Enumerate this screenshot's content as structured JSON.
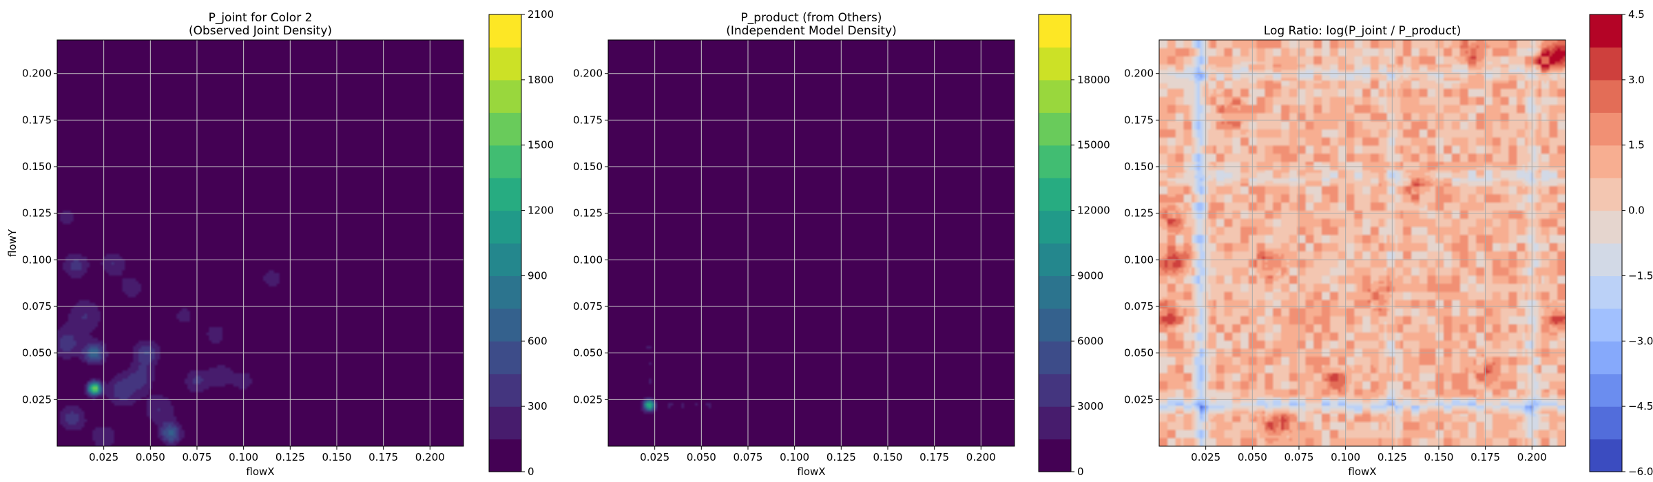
{
  "chart_data": [
    {
      "type": "heatmap",
      "title_lines": [
        "P_joint for Color 2",
        "(Observed Joint Density)"
      ],
      "xlabel": "flowX",
      "ylabel": "flowY",
      "xlim": [
        0.0,
        0.218
      ],
      "ylim": [
        0.0,
        0.218
      ],
      "xticks": [
        0.025,
        0.05,
        0.075,
        0.1,
        0.125,
        0.15,
        0.175,
        0.2
      ],
      "yticks": [
        0.025,
        0.05,
        0.075,
        0.1,
        0.125,
        0.15,
        0.175,
        0.2
      ],
      "xtick_labels": [
        "0.025",
        "0.050",
        "0.075",
        "0.100",
        "0.125",
        "0.150",
        "0.175",
        "0.200"
      ],
      "ytick_labels": [
        "0.025",
        "0.050",
        "0.075",
        "0.100",
        "0.125",
        "0.150",
        "0.175",
        "0.200"
      ],
      "grid": true,
      "colormap": "viridis",
      "colorbar": {
        "min": 0,
        "max": 2100,
        "ticks": [
          0,
          300,
          600,
          900,
          1200,
          1500,
          1800,
          2100
        ],
        "tick_labels": [
          "0",
          "300",
          "600",
          "900",
          "1200",
          "1500",
          "1800",
          "2100"
        ]
      },
      "background_value": 0,
      "hotspots": [
        {
          "x": 0.02,
          "y": 0.031,
          "value": 1650,
          "spread": 0.0025
        },
        {
          "x": 0.02,
          "y": 0.05,
          "value": 700,
          "spread": 0.004
        },
        {
          "x": 0.061,
          "y": 0.007,
          "value": 650,
          "spread": 0.004
        },
        {
          "x": 0.048,
          "y": 0.05,
          "value": 450,
          "spread": 0.005
        },
        {
          "x": 0.035,
          "y": 0.03,
          "value": 420,
          "spread": 0.006
        },
        {
          "x": 0.008,
          "y": 0.015,
          "value": 380,
          "spread": 0.005
        },
        {
          "x": 0.01,
          "y": 0.097,
          "value": 360,
          "spread": 0.005
        },
        {
          "x": 0.005,
          "y": 0.055,
          "value": 360,
          "spread": 0.006
        },
        {
          "x": 0.03,
          "y": 0.098,
          "value": 300,
          "spread": 0.005
        },
        {
          "x": 0.045,
          "y": 0.037,
          "value": 330,
          "spread": 0.005
        },
        {
          "x": 0.075,
          "y": 0.035,
          "value": 320,
          "spread": 0.005
        },
        {
          "x": 0.088,
          "y": 0.038,
          "value": 260,
          "spread": 0.005
        },
        {
          "x": 0.1,
          "y": 0.035,
          "value": 260,
          "spread": 0.004
        },
        {
          "x": 0.055,
          "y": 0.02,
          "value": 300,
          "spread": 0.006
        },
        {
          "x": 0.015,
          "y": 0.07,
          "value": 300,
          "spread": 0.007
        },
        {
          "x": 0.04,
          "y": 0.085,
          "value": 250,
          "spread": 0.005
        },
        {
          "x": 0.115,
          "y": 0.09,
          "value": 260,
          "spread": 0.004
        },
        {
          "x": 0.005,
          "y": 0.123,
          "value": 220,
          "spread": 0.004
        },
        {
          "x": 0.085,
          "y": 0.06,
          "value": 220,
          "spread": 0.005
        },
        {
          "x": 0.068,
          "y": 0.07,
          "value": 200,
          "spread": 0.005
        },
        {
          "x": 0.025,
          "y": 0.005,
          "value": 240,
          "spread": 0.006
        }
      ]
    },
    {
      "type": "heatmap",
      "title_lines": [
        "P_product (from Others)",
        "(Independent Model Density)"
      ],
      "xlabel": "flowX",
      "ylabel": "",
      "xlim": [
        0.0,
        0.218
      ],
      "ylim": [
        0.0,
        0.218
      ],
      "xticks": [
        0.025,
        0.05,
        0.075,
        0.1,
        0.125,
        0.15,
        0.175,
        0.2
      ],
      "yticks": [
        0.025,
        0.05,
        0.075,
        0.1,
        0.125,
        0.15,
        0.175,
        0.2
      ],
      "xtick_labels": [
        "0.025",
        "0.050",
        "0.075",
        "0.100",
        "0.125",
        "0.150",
        "0.175",
        "0.200"
      ],
      "ytick_labels": [
        "0.025",
        "0.050",
        "0.075",
        "0.100",
        "0.125",
        "0.150",
        "0.175",
        "0.200"
      ],
      "grid": true,
      "colormap": "viridis",
      "colorbar": {
        "min": 0,
        "max": 21000,
        "ticks": [
          0,
          3000,
          6000,
          9000,
          12000,
          15000,
          18000
        ],
        "tick_labels": [
          "0",
          "3000",
          "6000",
          "9000",
          "12000",
          "15000",
          "18000"
        ]
      },
      "background_value": 0,
      "hotspots": [
        {
          "x": 0.022,
          "y": 0.022,
          "value": 14000,
          "spread": 0.0022
        },
        {
          "x": 0.022,
          "y": 0.053,
          "value": 2200,
          "spread": 0.0015
        },
        {
          "x": 0.022,
          "y": 0.045,
          "value": 1800,
          "spread": 0.0015
        },
        {
          "x": 0.022,
          "y": 0.035,
          "value": 1900,
          "spread": 0.0015
        },
        {
          "x": 0.022,
          "y": 0.07,
          "value": 1200,
          "spread": 0.0015
        },
        {
          "x": 0.022,
          "y": 0.088,
          "value": 900,
          "spread": 0.0015
        },
        {
          "x": 0.022,
          "y": 0.102,
          "value": 700,
          "spread": 0.0015
        },
        {
          "x": 0.003,
          "y": 0.022,
          "value": 1600,
          "spread": 0.0015
        },
        {
          "x": 0.011,
          "y": 0.022,
          "value": 1400,
          "spread": 0.0015
        },
        {
          "x": 0.033,
          "y": 0.022,
          "value": 2200,
          "spread": 0.0015
        },
        {
          "x": 0.04,
          "y": 0.022,
          "value": 2000,
          "spread": 0.0015
        },
        {
          "x": 0.047,
          "y": 0.022,
          "value": 1800,
          "spread": 0.0015
        },
        {
          "x": 0.054,
          "y": 0.022,
          "value": 2000,
          "spread": 0.0015
        },
        {
          "x": 0.061,
          "y": 0.022,
          "value": 1600,
          "spread": 0.0015
        },
        {
          "x": 0.085,
          "y": 0.022,
          "value": 1000,
          "spread": 0.0015
        },
        {
          "x": 0.098,
          "y": 0.022,
          "value": 800,
          "spread": 0.0015
        },
        {
          "x": 0.107,
          "y": 0.022,
          "value": 600,
          "spread": 0.0015
        }
      ]
    },
    {
      "type": "heatmap",
      "title_lines": [
        "Log Ratio: log(P_joint / P_product)"
      ],
      "xlabel": "flowX",
      "ylabel": "",
      "xlim": [
        0.0,
        0.218
      ],
      "ylim": [
        0.0,
        0.218
      ],
      "xticks": [
        0.025,
        0.05,
        0.075,
        0.1,
        0.125,
        0.15,
        0.175,
        0.2
      ],
      "yticks": [
        0.025,
        0.05,
        0.075,
        0.1,
        0.125,
        0.15,
        0.175,
        0.2
      ],
      "xtick_labels": [
        "0.025",
        "0.050",
        "0.075",
        "0.100",
        "0.125",
        "0.150",
        "0.175",
        "0.200"
      ],
      "ytick_labels": [
        "0.025",
        "0.050",
        "0.075",
        "0.100",
        "0.125",
        "0.150",
        "0.175",
        "0.200"
      ],
      "grid": true,
      "colormap": "coolwarm",
      "colorbar": {
        "min": -6.0,
        "max": 4.5,
        "ticks": [
          -6.0,
          -4.5,
          -3.0,
          -1.5,
          0.0,
          1.5,
          3.0,
          4.5
        ],
        "tick_labels": [
          "−6.0",
          "−4.5",
          "−3.0",
          "−1.5",
          "0.0",
          "1.5",
          "3.0",
          "4.5"
        ]
      },
      "background_value": 0.8,
      "cold_bands": [
        {
          "axis": "x",
          "at": 0.022,
          "value": -2.4
        },
        {
          "axis": "y",
          "at": 0.022,
          "value": -2.2
        },
        {
          "axis": "x",
          "at": 0.2,
          "value": -1.4
        },
        {
          "axis": "y",
          "at": 0.2,
          "value": -1.2
        },
        {
          "axis": "y",
          "at": 0.145,
          "value": -1.0
        },
        {
          "axis": "x",
          "at": 0.125,
          "value": -0.8
        }
      ],
      "hot_spots": [
        {
          "x": 0.215,
          "y": 0.21,
          "value": 3.2
        },
        {
          "x": 0.205,
          "y": 0.205,
          "value": 2.8
        },
        {
          "x": 0.008,
          "y": 0.098,
          "value": 2.2
        },
        {
          "x": 0.062,
          "y": 0.012,
          "value": 2.4
        },
        {
          "x": 0.215,
          "y": 0.07,
          "value": 2.0
        },
        {
          "x": 0.06,
          "y": 0.098,
          "value": 2.0
        },
        {
          "x": 0.12,
          "y": 0.08,
          "value": 2.0
        },
        {
          "x": 0.005,
          "y": 0.07,
          "value": 1.8
        },
        {
          "x": 0.005,
          "y": 0.123,
          "value": 1.8
        },
        {
          "x": 0.14,
          "y": 0.14,
          "value": 1.6
        },
        {
          "x": 0.095,
          "y": 0.035,
          "value": 1.6
        },
        {
          "x": 0.175,
          "y": 0.04,
          "value": 1.6
        },
        {
          "x": 0.17,
          "y": 0.212,
          "value": 1.8
        },
        {
          "x": 0.04,
          "y": 0.178,
          "value": 1.5
        }
      ]
    }
  ]
}
